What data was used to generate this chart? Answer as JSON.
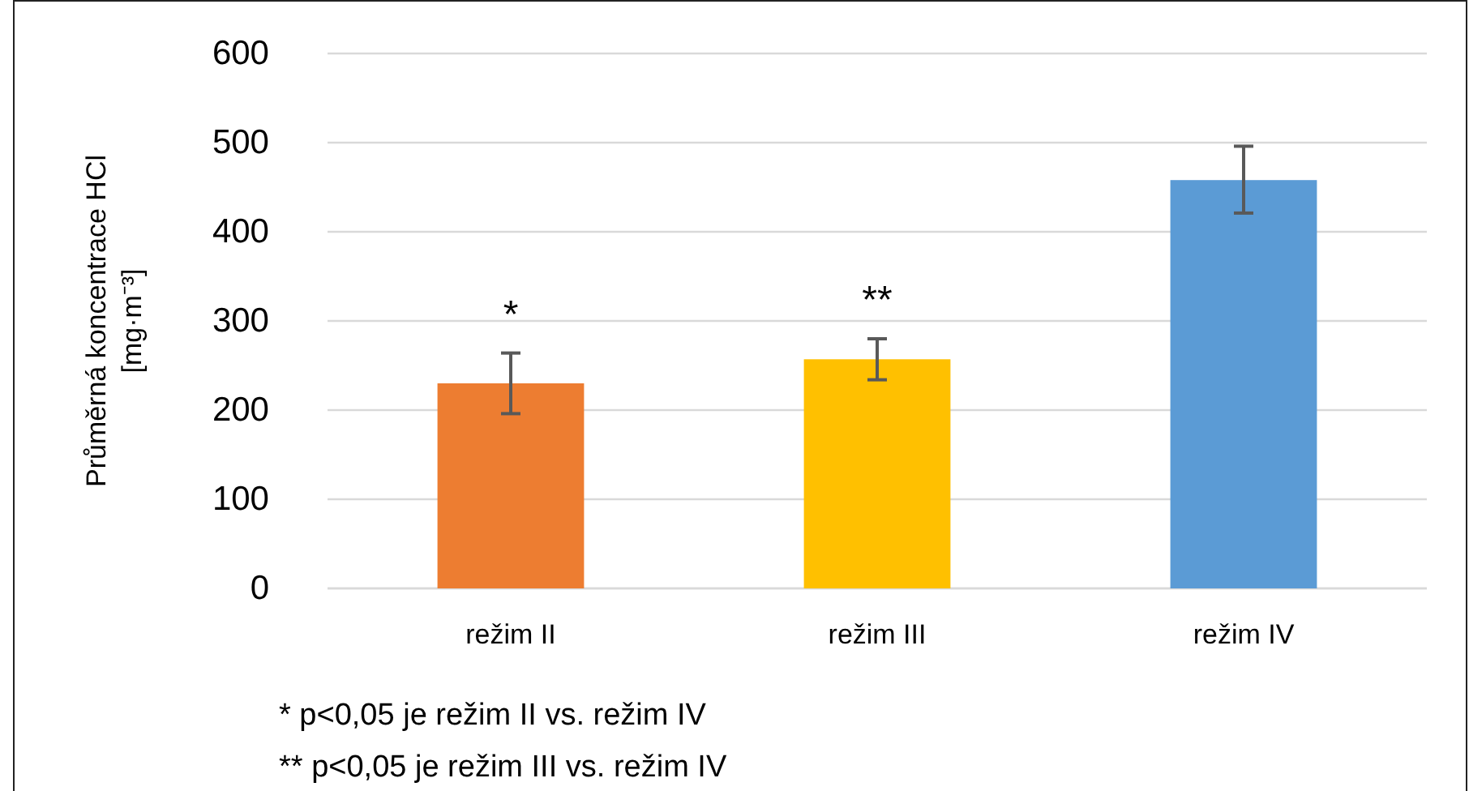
{
  "chart_data": {
    "type": "bar",
    "ylabel": "Průměrná koncentrace HCl\n[mg·m⁻³]",
    "categories": [
      "režim II",
      "režim III",
      "režim IV"
    ],
    "values": [
      230,
      257,
      458
    ],
    "colors": [
      "#ed7d31",
      "#ffc000",
      "#5b9bd5"
    ],
    "errors": [
      [
        196,
        264
      ],
      [
        234,
        280
      ],
      [
        421,
        496
      ]
    ],
    "ylim": [
      0,
      600
    ],
    "yticks": [
      0,
      100,
      200,
      300,
      400,
      500,
      600
    ],
    "grid": "y",
    "annotations": [
      "*",
      "**",
      "* p<0,05 je režim II vs. režim IV",
      "** p<0,05 je režim III vs. režim IV"
    ]
  }
}
